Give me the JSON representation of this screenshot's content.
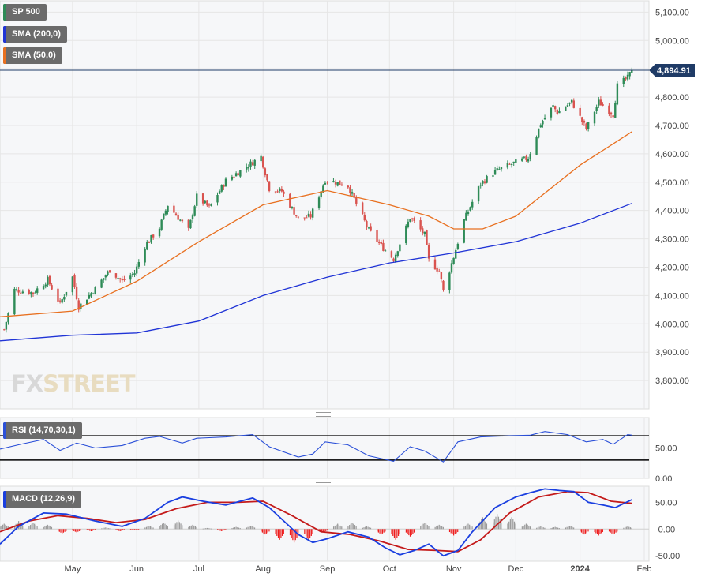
{
  "legends": {
    "price": "SP 500",
    "sma200": "SMA (200,0)",
    "sma50": "SMA (50,0)",
    "rsi": "RSI (14,70,30,1)",
    "macd": "MACD (12,26,9)"
  },
  "watermark": {
    "fx": "FX",
    "street": "STREET"
  },
  "colors": {
    "up": "#2e8b57",
    "down": "#d9534f",
    "sma200": "#2034d6",
    "sma50": "#e87020",
    "rsi": "#2b50d8",
    "macd_line": "#1a3fe0",
    "signal_line": "#c41a1a",
    "hist_pos": "#9a9a9a",
    "hist_neg": "#ee1c1c",
    "price_label_bg": "#1f3b66"
  },
  "chart_data": [
    {
      "type": "candlestick",
      "title": "SP 500",
      "last_price_label": "4,894.91",
      "last_price": 4894.91,
      "ylim": [
        3700,
        5140
      ],
      "y_ticks": [
        5100,
        5000,
        4900,
        4800,
        4700,
        4600,
        4500,
        4400,
        4300,
        4200,
        4100,
        4000,
        3900,
        3800
      ],
      "y_tick_labels": [
        "5,100.00",
        "5,000.00",
        "4,900.00",
        "4,800.00",
        "4,700.00",
        "4,600.00",
        "4,500.00",
        "4,400.00",
        "4,300.00",
        "4,200.00",
        "4,100.00",
        "4,000.00",
        "3,900.00",
        "3,800.00"
      ],
      "x_tick_labels": [
        "May",
        "Jun",
        "Jul",
        "Aug",
        "Sep",
        "Oct",
        "Nov",
        "Dec",
        "2024",
        "Feb"
      ],
      "x_ticks": [
        "2023-05-01",
        "2023-06-01",
        "2023-07-01",
        "2023-08-01",
        "2023-09-01",
        "2023-10-01",
        "2023-11-01",
        "2023-12-01",
        "2024-01-01",
        "2024-02-01"
      ],
      "series_close": {
        "name": "SP 500",
        "points": [
          [
            "2023-03-29",
            3980
          ],
          [
            "2023-04-03",
            4120
          ],
          [
            "2023-04-12",
            4110
          ],
          [
            "2023-04-19",
            4155
          ],
          [
            "2023-04-25",
            4070
          ],
          [
            "2023-05-01",
            4165
          ],
          [
            "2023-05-04",
            4060
          ],
          [
            "2023-05-12",
            4125
          ],
          [
            "2023-05-19",
            4190
          ],
          [
            "2023-05-25",
            4150
          ],
          [
            "2023-05-31",
            4180
          ],
          [
            "2023-06-05",
            4275
          ],
          [
            "2023-06-12",
            4340
          ],
          [
            "2023-06-16",
            4420
          ],
          [
            "2023-06-26",
            4330
          ],
          [
            "2023-06-30",
            4450
          ],
          [
            "2023-07-06",
            4410
          ],
          [
            "2023-07-14",
            4505
          ],
          [
            "2023-07-21",
            4540
          ],
          [
            "2023-07-27",
            4570
          ],
          [
            "2023-07-31",
            4590
          ],
          [
            "2023-08-04",
            4478
          ],
          [
            "2023-08-10",
            4468
          ],
          [
            "2023-08-18",
            4370
          ],
          [
            "2023-08-24",
            4380
          ],
          [
            "2023-08-31",
            4508
          ],
          [
            "2023-09-05",
            4500
          ],
          [
            "2023-09-11",
            4487
          ],
          [
            "2023-09-21",
            4330
          ],
          [
            "2023-09-27",
            4275
          ],
          [
            "2023-10-03",
            4229
          ],
          [
            "2023-10-11",
            4376
          ],
          [
            "2023-10-18",
            4314
          ],
          [
            "2023-10-20",
            4224
          ],
          [
            "2023-10-25",
            4186
          ],
          [
            "2023-10-27",
            4117
          ],
          [
            "2023-11-01",
            4237
          ],
          [
            "2023-11-06",
            4365
          ],
          [
            "2023-11-14",
            4495
          ],
          [
            "2023-11-21",
            4538
          ],
          [
            "2023-11-30",
            4567
          ],
          [
            "2023-12-07",
            4585
          ],
          [
            "2023-12-13",
            4707
          ],
          [
            "2023-12-19",
            4768
          ],
          [
            "2023-12-21",
            4746
          ],
          [
            "2023-12-28",
            4783
          ],
          [
            "2024-01-04",
            4688
          ],
          [
            "2024-01-10",
            4783
          ],
          [
            "2024-01-17",
            4739
          ],
          [
            "2024-01-19",
            4840
          ],
          [
            "2024-01-24",
            4868
          ],
          [
            "2024-01-26",
            4894.91
          ]
        ]
      },
      "sma_200": {
        "name": "SMA (200,0)",
        "points": [
          [
            "2023-03-27",
            3940
          ],
          [
            "2023-05-01",
            3960
          ],
          [
            "2023-06-01",
            3968
          ],
          [
            "2023-07-01",
            4010
          ],
          [
            "2023-08-01",
            4100
          ],
          [
            "2023-09-01",
            4165
          ],
          [
            "2023-10-01",
            4215
          ],
          [
            "2023-11-01",
            4250
          ],
          [
            "2023-12-01",
            4290
          ],
          [
            "2024-01-01",
            4355
          ],
          [
            "2024-01-26",
            4425
          ]
        ]
      },
      "sma_50": {
        "name": "SMA (50,0)",
        "points": [
          [
            "2023-03-27",
            4025
          ],
          [
            "2023-05-01",
            4045
          ],
          [
            "2023-06-01",
            4150
          ],
          [
            "2023-07-01",
            4290
          ],
          [
            "2023-08-01",
            4420
          ],
          [
            "2023-09-01",
            4470
          ],
          [
            "2023-10-01",
            4420
          ],
          [
            "2023-10-20",
            4380
          ],
          [
            "2023-11-01",
            4335
          ],
          [
            "2023-11-15",
            4335
          ],
          [
            "2023-12-01",
            4380
          ],
          [
            "2024-01-01",
            4560
          ],
          [
            "2024-01-26",
            4678
          ]
        ]
      }
    },
    {
      "type": "line",
      "title": "RSI (14,70,30,1)",
      "ylim": [
        0,
        100
      ],
      "y_ticks": [
        50,
        0
      ],
      "y_tick_labels": [
        "50.00",
        "0.00"
      ],
      "levels": [
        70,
        30
      ],
      "series": [
        {
          "name": "RSI",
          "points": [
            [
              "2023-03-27",
              48
            ],
            [
              "2023-04-06",
              56
            ],
            [
              "2023-04-17",
              64
            ],
            [
              "2023-04-25",
              46
            ],
            [
              "2023-05-03",
              58
            ],
            [
              "2023-05-12",
              50
            ],
            [
              "2023-05-25",
              54
            ],
            [
              "2023-06-05",
              66
            ],
            [
              "2023-06-12",
              69
            ],
            [
              "2023-06-23",
              58
            ],
            [
              "2023-06-30",
              66
            ],
            [
              "2023-07-14",
              68
            ],
            [
              "2023-07-27",
              72
            ],
            [
              "2023-08-04",
              52
            ],
            [
              "2023-08-18",
              35
            ],
            [
              "2023-08-25",
              40
            ],
            [
              "2023-08-31",
              60
            ],
            [
              "2023-09-11",
              55
            ],
            [
              "2023-09-21",
              37
            ],
            [
              "2023-10-03",
              28
            ],
            [
              "2023-10-11",
              52
            ],
            [
              "2023-10-18",
              45
            ],
            [
              "2023-10-27",
              27
            ],
            [
              "2023-11-03",
              60
            ],
            [
              "2023-11-14",
              68
            ],
            [
              "2023-11-28",
              70
            ],
            [
              "2023-12-08",
              71
            ],
            [
              "2023-12-15",
              77
            ],
            [
              "2023-12-26",
              72
            ],
            [
              "2024-01-04",
              60
            ],
            [
              "2024-01-12",
              64
            ],
            [
              "2024-01-17",
              56
            ],
            [
              "2024-01-24",
              72
            ],
            [
              "2024-01-26",
              71
            ]
          ]
        }
      ]
    },
    {
      "type": "line",
      "title": "MACD (12,26,9)",
      "ylim": [
        -60,
        80
      ],
      "y_ticks": [
        50,
        0,
        -50
      ],
      "y_tick_labels": [
        "50.00",
        "-0.00",
        "-50.00"
      ],
      "series": [
        {
          "name": "MACD",
          "points": [
            [
              "2023-03-27",
              -28
            ],
            [
              "2023-04-05",
              5
            ],
            [
              "2023-04-17",
              30
            ],
            [
              "2023-04-28",
              28
            ],
            [
              "2023-05-12",
              15
            ],
            [
              "2023-05-25",
              5
            ],
            [
              "2023-06-05",
              20
            ],
            [
              "2023-06-16",
              50
            ],
            [
              "2023-06-23",
              60
            ],
            [
              "2023-07-03",
              52
            ],
            [
              "2023-07-14",
              45
            ],
            [
              "2023-07-27",
              58
            ],
            [
              "2023-08-04",
              40
            ],
            [
              "2023-08-11",
              15
            ],
            [
              "2023-08-18",
              -10
            ],
            [
              "2023-08-25",
              -25
            ],
            [
              "2023-09-01",
              -18
            ],
            [
              "2023-09-11",
              -5
            ],
            [
              "2023-09-21",
              -15
            ],
            [
              "2023-09-29",
              -35
            ],
            [
              "2023-10-06",
              -48
            ],
            [
              "2023-10-13",
              -40
            ],
            [
              "2023-10-20",
              -28
            ],
            [
              "2023-10-27",
              -50
            ],
            [
              "2023-11-03",
              -40
            ],
            [
              "2023-11-10",
              -5
            ],
            [
              "2023-11-21",
              40
            ],
            [
              "2023-12-01",
              60
            ],
            [
              "2023-12-08",
              68
            ],
            [
              "2023-12-15",
              75
            ],
            [
              "2023-12-22",
              72
            ],
            [
              "2023-12-29",
              70
            ],
            [
              "2024-01-05",
              50
            ],
            [
              "2024-01-12",
              45
            ],
            [
              "2024-01-18",
              40
            ],
            [
              "2024-01-26",
              55
            ]
          ]
        },
        {
          "name": "Signal",
          "points": [
            [
              "2023-03-27",
              -5
            ],
            [
              "2023-04-10",
              15
            ],
            [
              "2023-04-24",
              25
            ],
            [
              "2023-05-08",
              20
            ],
            [
              "2023-05-22",
              12
            ],
            [
              "2023-06-05",
              18
            ],
            [
              "2023-06-20",
              38
            ],
            [
              "2023-07-05",
              50
            ],
            [
              "2023-07-20",
              50
            ],
            [
              "2023-08-01",
              52
            ],
            [
              "2023-08-15",
              25
            ],
            [
              "2023-08-29",
              -5
            ],
            [
              "2023-09-12",
              -10
            ],
            [
              "2023-09-26",
              -22
            ],
            [
              "2023-10-10",
              -38
            ],
            [
              "2023-10-24",
              -40
            ],
            [
              "2023-11-03",
              -42
            ],
            [
              "2023-11-14",
              -20
            ],
            [
              "2023-11-28",
              30
            ],
            [
              "2023-12-12",
              60
            ],
            [
              "2023-12-26",
              70
            ],
            [
              "2024-01-05",
              68
            ],
            [
              "2024-01-16",
              52
            ],
            [
              "2024-01-26",
              48
            ]
          ]
        }
      ],
      "histogram": [
        [
          "2023-03-29",
          10
        ],
        [
          "2023-04-05",
          15
        ],
        [
          "2023-04-12",
          12
        ],
        [
          "2023-04-19",
          8
        ],
        [
          "2023-04-26",
          -8
        ],
        [
          "2023-05-03",
          -6
        ],
        [
          "2023-05-10",
          -4
        ],
        [
          "2023-05-17",
          3
        ],
        [
          "2023-05-24",
          -4
        ],
        [
          "2023-05-31",
          -2
        ],
        [
          "2023-06-07",
          6
        ],
        [
          "2023-06-14",
          12
        ],
        [
          "2023-06-21",
          16
        ],
        [
          "2023-06-28",
          8
        ],
        [
          "2023-07-05",
          2
        ],
        [
          "2023-07-12",
          -4
        ],
        [
          "2023-07-19",
          4
        ],
        [
          "2023-07-26",
          6
        ],
        [
          "2023-08-02",
          -10
        ],
        [
          "2023-08-09",
          -20
        ],
        [
          "2023-08-16",
          -25
        ],
        [
          "2023-08-23",
          -20
        ],
        [
          "2023-08-30",
          -6
        ],
        [
          "2023-09-06",
          10
        ],
        [
          "2023-09-13",
          12
        ],
        [
          "2023-09-20",
          5
        ],
        [
          "2023-09-27",
          -10
        ],
        [
          "2023-10-04",
          -20
        ],
        [
          "2023-10-11",
          -14
        ],
        [
          "2023-10-18",
          12
        ],
        [
          "2023-10-25",
          8
        ],
        [
          "2023-11-01",
          -12
        ],
        [
          "2023-11-08",
          10
        ],
        [
          "2023-11-15",
          22
        ],
        [
          "2023-11-22",
          28
        ],
        [
          "2023-11-29",
          22
        ],
        [
          "2023-12-06",
          10
        ],
        [
          "2023-12-13",
          5
        ],
        [
          "2023-12-20",
          4
        ],
        [
          "2023-12-27",
          6
        ],
        [
          "2024-01-03",
          -10
        ],
        [
          "2024-01-10",
          -12
        ],
        [
          "2024-01-17",
          -10
        ],
        [
          "2024-01-24",
          5
        ]
      ]
    }
  ]
}
